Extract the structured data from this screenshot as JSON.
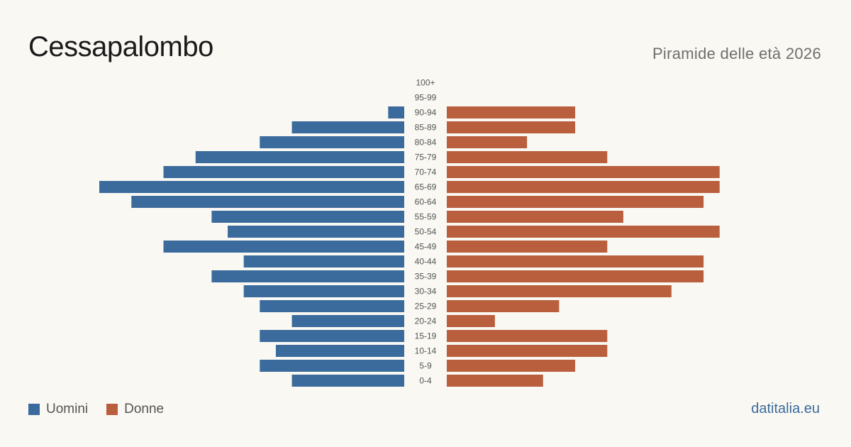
{
  "header": {
    "title": "Cessapalombo",
    "subtitle": "Piramide delle età 2026"
  },
  "legend": {
    "men_label": "Uomini",
    "women_label": "Donne"
  },
  "footer": {
    "source": "datitalia.eu"
  },
  "colors": {
    "men": "#3a6b9c",
    "women": "#b95f3e",
    "background": "#faf8f3"
  },
  "chart_data": {
    "type": "bar",
    "orientation": "horizontal-pyramid",
    "categories": [
      "100+",
      "95-99",
      "90-94",
      "85-89",
      "80-84",
      "75-79",
      "70-74",
      "65-69",
      "60-64",
      "55-59",
      "50-54",
      "45-49",
      "40-44",
      "35-39",
      "30-34",
      "25-29",
      "20-24",
      "15-19",
      "10-14",
      "5-9",
      "0-4"
    ],
    "series": [
      {
        "name": "Uomini",
        "values": [
          0,
          0,
          1,
          7,
          9,
          13,
          15,
          19,
          17,
          12,
          11,
          15,
          10,
          12,
          10,
          9,
          7,
          9,
          8,
          9,
          7
        ]
      },
      {
        "name": "Donne",
        "values": [
          0,
          0,
          8,
          8,
          5,
          10,
          17,
          17,
          16,
          11,
          17,
          10,
          16,
          16,
          14,
          7,
          3,
          10,
          10,
          8,
          6
        ]
      }
    ],
    "xlim": [
      0,
      19
    ],
    "grid": false,
    "legend_position": "bottom-left"
  }
}
